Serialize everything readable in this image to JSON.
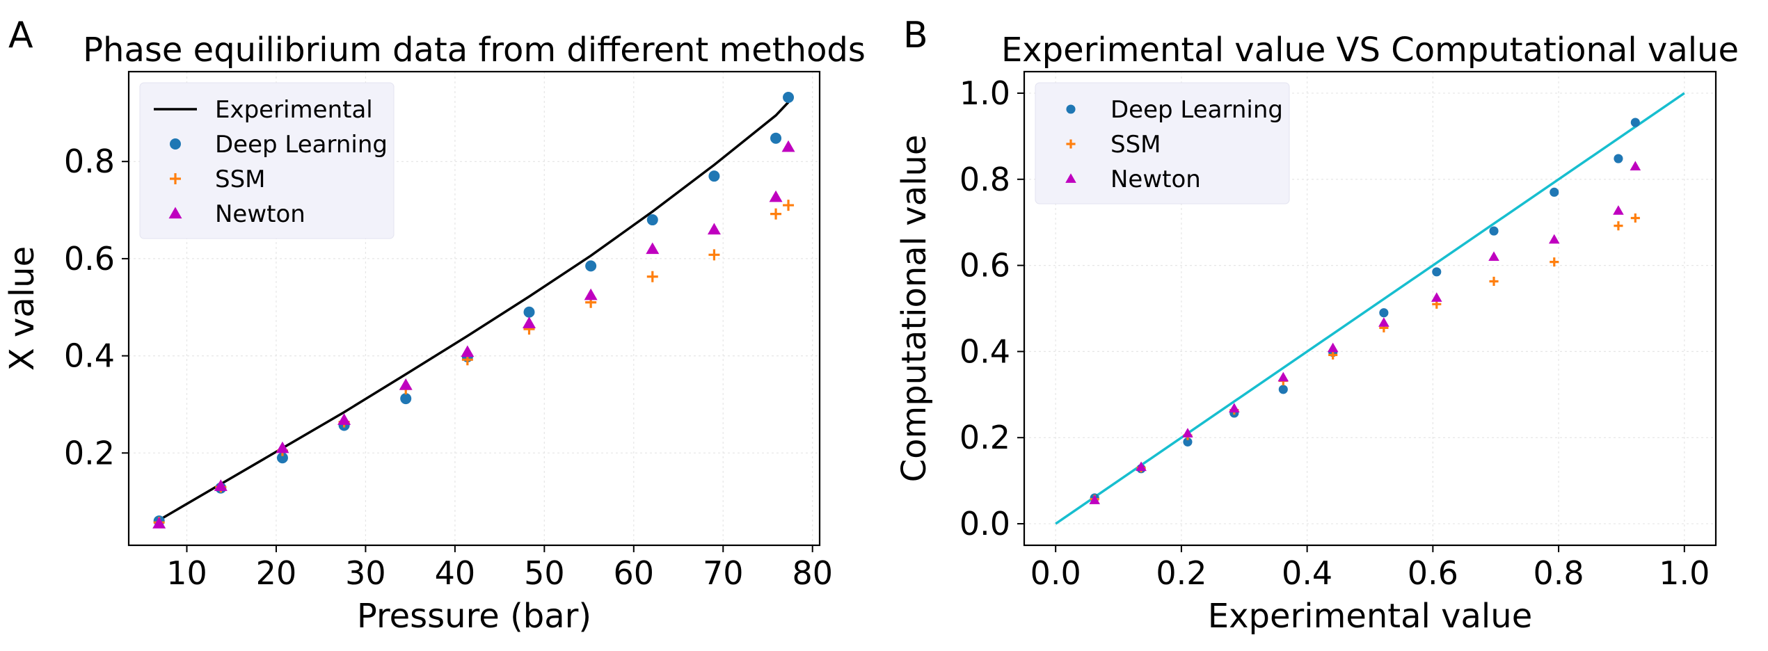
{
  "panels": {
    "a": {
      "letter": "A"
    },
    "b": {
      "letter": "B"
    }
  },
  "colors": {
    "deep_learning": "#1f77b4",
    "ssm": "#ff7f0e",
    "newton": "#bf00bf",
    "experimental": "#000000",
    "parity": "#17becf",
    "legend_bg": "#f2f2fa"
  },
  "chart_data": [
    {
      "type": "scatter",
      "title": "Phase equilibrium data from different methods",
      "xlabel": "Pressure (bar)",
      "ylabel": "X value",
      "xlim": [
        3.5,
        80.8
      ],
      "ylim": [
        0.01,
        0.985
      ],
      "xticks": [
        "10",
        "20",
        "30",
        "40",
        "50",
        "60",
        "70",
        "80"
      ],
      "yticks": [
        "0.2",
        "0.4",
        "0.6",
        "0.8"
      ],
      "grid": true,
      "legend_position": "top-left",
      "x": [
        6.9,
        13.8,
        20.7,
        27.6,
        34.5,
        41.4,
        48.3,
        55.2,
        62.1,
        69.0,
        75.9,
        77.3
      ],
      "series": [
        {
          "name": "Experimental",
          "kind": "line",
          "values": [
            0.062,
            0.136,
            0.21,
            0.284,
            0.362,
            0.441,
            0.522,
            0.606,
            0.697,
            0.793,
            0.895,
            0.922
          ]
        },
        {
          "name": "Deep Learning",
          "kind": "circle",
          "values": [
            0.06,
            0.128,
            0.19,
            0.257,
            0.312,
            0.398,
            0.49,
            0.585,
            0.68,
            0.77,
            0.848,
            0.932
          ]
        },
        {
          "name": "SSM",
          "kind": "plus",
          "values": [
            0.057,
            0.13,
            0.205,
            0.264,
            0.332,
            0.392,
            0.455,
            0.51,
            0.563,
            0.608,
            0.692,
            0.71
          ]
        },
        {
          "name": "Newton",
          "kind": "triangle",
          "values": [
            0.055,
            0.132,
            0.21,
            0.268,
            0.34,
            0.408,
            0.467,
            0.525,
            0.62,
            0.66,
            0.727,
            0.83
          ]
        }
      ]
    },
    {
      "type": "scatter",
      "title": "Experimental value VS Computational value",
      "xlabel": "Experimental value",
      "ylabel": "Computational value",
      "xlim": [
        -0.05,
        1.05
      ],
      "ylim": [
        -0.05,
        1.05
      ],
      "xticks": [
        "0.0",
        "0.2",
        "0.4",
        "0.6",
        "0.8",
        "1.0"
      ],
      "yticks": [
        "0.0",
        "0.2",
        "0.4",
        "0.6",
        "0.8",
        "1.0"
      ],
      "grid": true,
      "legend_position": "top-left",
      "reference_line": {
        "x": [
          0,
          1
        ],
        "y": [
          0,
          1
        ]
      },
      "x": [
        0.062,
        0.136,
        0.21,
        0.284,
        0.362,
        0.441,
        0.522,
        0.606,
        0.697,
        0.793,
        0.895,
        0.922
      ],
      "series": [
        {
          "name": "Deep Learning",
          "kind": "circle",
          "values": [
            0.06,
            0.128,
            0.19,
            0.257,
            0.312,
            0.398,
            0.49,
            0.585,
            0.68,
            0.77,
            0.848,
            0.932
          ]
        },
        {
          "name": "SSM",
          "kind": "plus",
          "values": [
            0.057,
            0.13,
            0.205,
            0.264,
            0.332,
            0.392,
            0.455,
            0.51,
            0.563,
            0.608,
            0.692,
            0.71
          ]
        },
        {
          "name": "Newton",
          "kind": "triangle",
          "values": [
            0.055,
            0.132,
            0.21,
            0.268,
            0.34,
            0.408,
            0.467,
            0.525,
            0.62,
            0.66,
            0.727,
            0.83
          ]
        }
      ]
    }
  ]
}
